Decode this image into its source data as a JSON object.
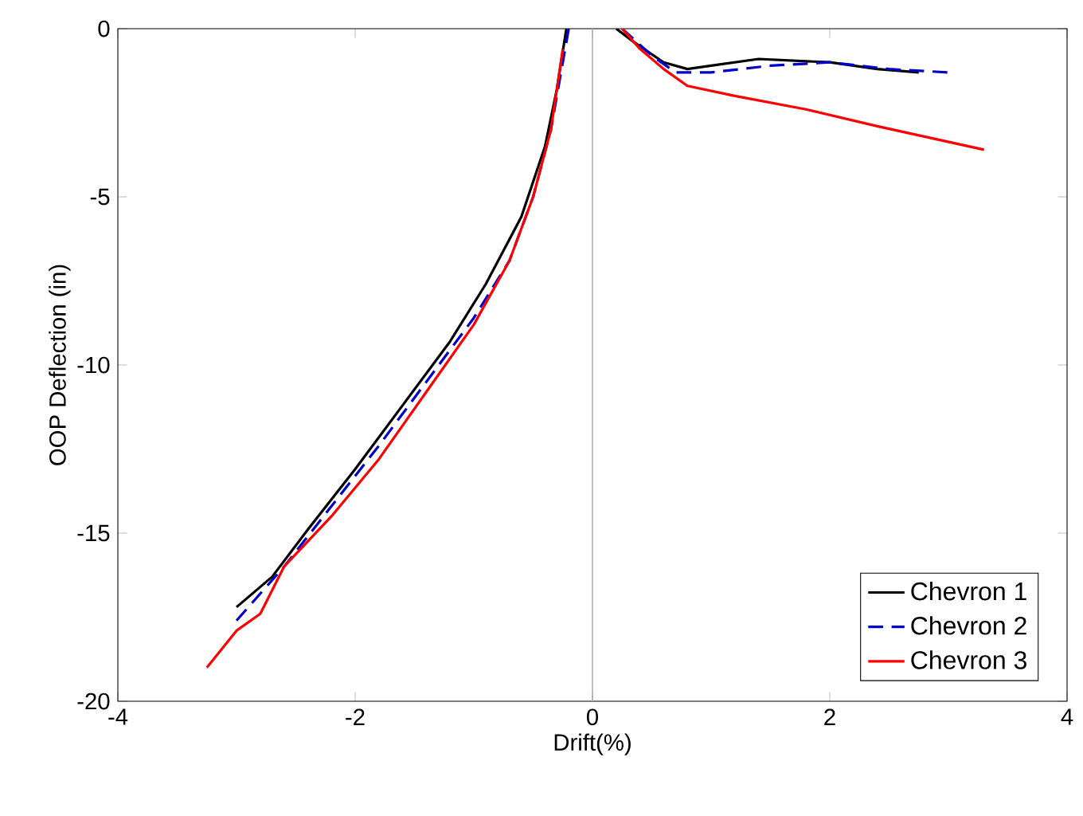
{
  "chart_data": {
    "type": "line",
    "xlabel": "Drift(%)",
    "ylabel": "OOP Deflection (in)",
    "xlim": [
      -4,
      4
    ],
    "ylim": [
      -20,
      0
    ],
    "xticks": [
      -4,
      -2,
      0,
      2,
      4
    ],
    "yticks": [
      -20,
      -15,
      -10,
      -5,
      0
    ],
    "grid": false,
    "legend": "bottom right",
    "marker": "none",
    "ref_lines": [
      {
        "axis": "x",
        "value": 0,
        "color": "#b0b0b0"
      }
    ],
    "series": [
      {
        "name": "Chevron 1",
        "color": "#000000",
        "line_style": "solid",
        "x": [
          -3.0,
          -2.7,
          -2.4,
          -2.0,
          -1.6,
          -1.2,
          -0.9,
          -0.6,
          -0.4,
          -0.3,
          -0.22,
          null,
          0.2,
          0.35,
          0.6,
          0.8,
          1.0,
          1.4,
          2.0,
          2.4,
          2.75
        ],
        "values": [
          -17.2,
          -16.3,
          -14.9,
          -13.1,
          -11.2,
          -9.3,
          -7.6,
          -5.6,
          -3.5,
          -1.8,
          0,
          null,
          0,
          -0.4,
          -1.0,
          -1.2,
          -1.1,
          -0.9,
          -1.0,
          -1.2,
          -1.3
        ]
      },
      {
        "name": "Chevron 2",
        "color": "#0000cc",
        "line_style": "dashed",
        "x": [
          -3.0,
          -2.6,
          -2.2,
          -1.8,
          -1.4,
          -1.0,
          -0.7,
          -0.5,
          -0.35,
          -0.25,
          -0.2,
          null,
          0.25,
          0.5,
          0.7,
          1.0,
          1.5,
          2.0,
          2.5,
          3.0
        ],
        "values": [
          -17.6,
          -16.0,
          -14.2,
          -12.4,
          -10.5,
          -8.6,
          -6.9,
          -5.0,
          -3.0,
          -1.0,
          0,
          null,
          0,
          -0.8,
          -1.3,
          -1.3,
          -1.1,
          -1.0,
          -1.2,
          -1.3
        ]
      },
      {
        "name": "Chevron 3",
        "color": "#ff0000",
        "line_style": "solid",
        "x": [
          -3.25,
          -3.0,
          -2.8,
          -2.6,
          -2.2,
          -1.8,
          -1.4,
          -1.0,
          -0.7,
          -0.5,
          -0.35,
          -0.25,
          null,
          0.25,
          0.4,
          0.6,
          0.8,
          1.2,
          1.8,
          2.4,
          3.3
        ],
        "values": [
          -19.0,
          -17.9,
          -17.4,
          -16.0,
          -14.5,
          -12.8,
          -10.8,
          -8.8,
          -6.9,
          -5.0,
          -3.0,
          -0.6,
          null,
          0,
          -0.6,
          -1.2,
          -1.7,
          -2.0,
          -2.4,
          -2.9,
          -3.6
        ]
      }
    ]
  }
}
